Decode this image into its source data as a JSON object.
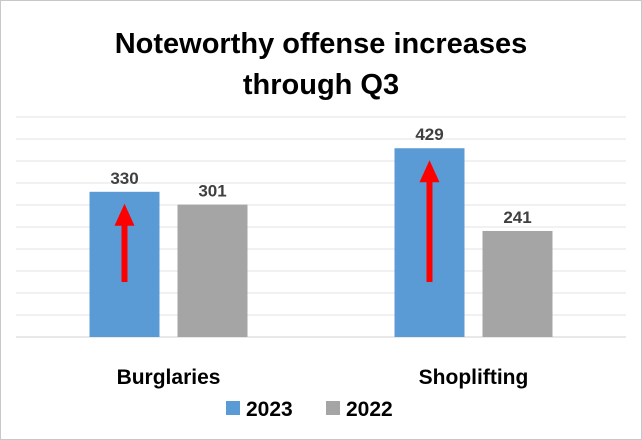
{
  "chart_data": {
    "type": "bar",
    "title_lines": [
      "Noteworthy offense increases",
      "through Q3"
    ],
    "categories": [
      "Burglaries",
      "Shoplifting"
    ],
    "series": [
      {
        "name": "2023",
        "values": [
          330,
          429
        ],
        "color": "#5b9bd5"
      },
      {
        "name": "2022",
        "values": [
          301,
          241
        ],
        "color": "#a5a5a5"
      }
    ],
    "annotations": [
      {
        "type": "up-arrow",
        "category": "Burglaries",
        "series": "2023",
        "color": "#ff0000"
      },
      {
        "type": "up-arrow",
        "category": "Shoplifting",
        "series": "2023",
        "color": "#ff0000"
      }
    ],
    "ylim": [
      0,
      500
    ],
    "grid": true,
    "legend_position": "bottom",
    "xlabel": "",
    "ylabel": ""
  }
}
